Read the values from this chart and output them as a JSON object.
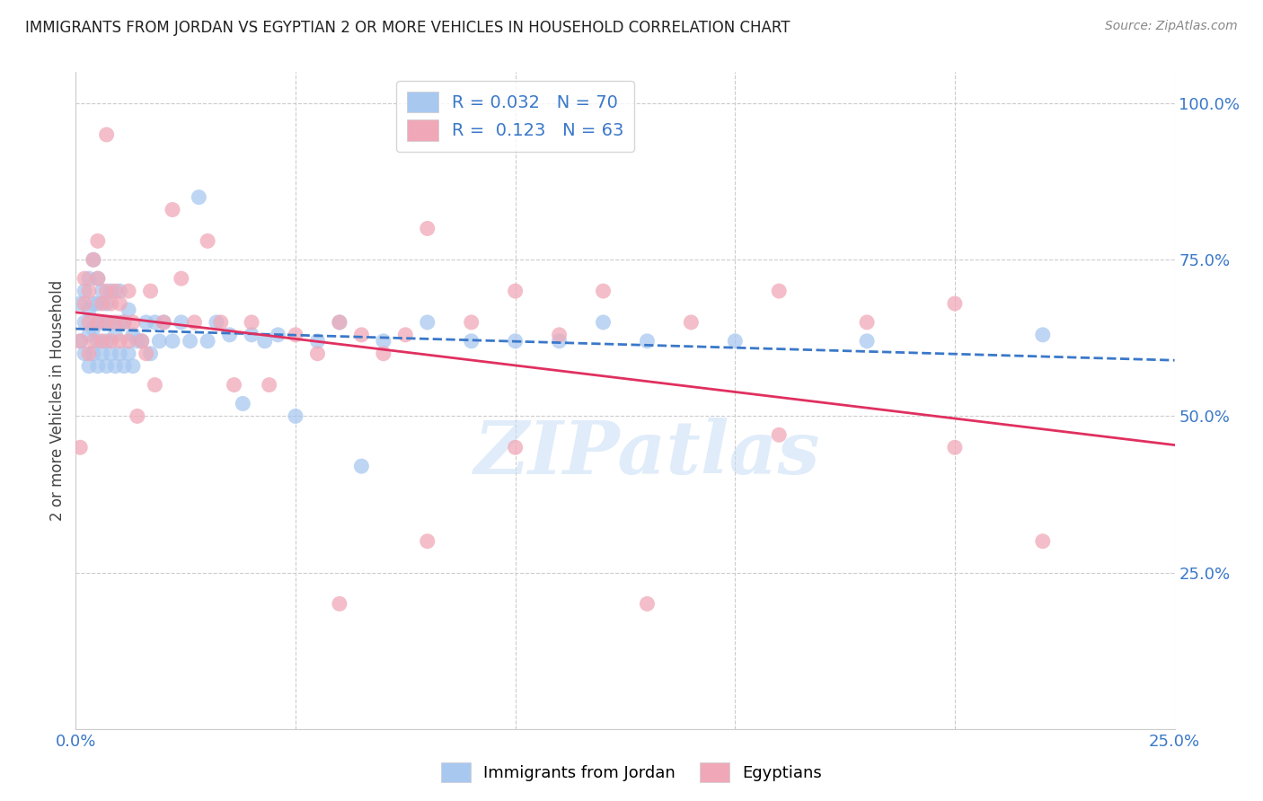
{
  "title": "IMMIGRANTS FROM JORDAN VS EGYPTIAN 2 OR MORE VEHICLES IN HOUSEHOLD CORRELATION CHART",
  "source": "Source: ZipAtlas.com",
  "ylabel": "2 or more Vehicles in Household",
  "watermark": "ZIPatlas",
  "legend_blue_R": "0.032",
  "legend_blue_N": "70",
  "legend_pink_R": "0.123",
  "legend_pink_N": "63",
  "blue_color": "#a8c8f0",
  "pink_color": "#f0a8b8",
  "trend_blue_color": "#3a78c9",
  "trend_pink_color": "#e03060",
  "blue_x": [
    0.001,
    0.001,
    0.002,
    0.002,
    0.002,
    0.003,
    0.003,
    0.003,
    0.003,
    0.004,
    0.004,
    0.004,
    0.004,
    0.005,
    0.005,
    0.005,
    0.005,
    0.005,
    0.006,
    0.006,
    0.006,
    0.007,
    0.007,
    0.007,
    0.008,
    0.008,
    0.008,
    0.009,
    0.009,
    0.01,
    0.01,
    0.01,
    0.011,
    0.011,
    0.012,
    0.012,
    0.013,
    0.013,
    0.014,
    0.015,
    0.016,
    0.017,
    0.018,
    0.019,
    0.02,
    0.022,
    0.024,
    0.026,
    0.028,
    0.03,
    0.032,
    0.035,
    0.038,
    0.04,
    0.043,
    0.046,
    0.05,
    0.055,
    0.06,
    0.065,
    0.07,
    0.08,
    0.09,
    0.1,
    0.11,
    0.12,
    0.13,
    0.15,
    0.18,
    0.22
  ],
  "blue_y": [
    0.62,
    0.68,
    0.6,
    0.65,
    0.7,
    0.58,
    0.63,
    0.67,
    0.72,
    0.6,
    0.64,
    0.68,
    0.75,
    0.58,
    0.62,
    0.65,
    0.68,
    0.72,
    0.6,
    0.65,
    0.7,
    0.58,
    0.62,
    0.68,
    0.6,
    0.65,
    0.7,
    0.58,
    0.63,
    0.6,
    0.65,
    0.7,
    0.58,
    0.65,
    0.6,
    0.67,
    0.58,
    0.63,
    0.62,
    0.62,
    0.65,
    0.6,
    0.65,
    0.62,
    0.65,
    0.62,
    0.65,
    0.62,
    0.85,
    0.62,
    0.65,
    0.63,
    0.52,
    0.63,
    0.62,
    0.63,
    0.5,
    0.62,
    0.65,
    0.42,
    0.62,
    0.65,
    0.62,
    0.62,
    0.62,
    0.65,
    0.62,
    0.62,
    0.62,
    0.63
  ],
  "pink_x": [
    0.001,
    0.001,
    0.002,
    0.002,
    0.003,
    0.003,
    0.003,
    0.004,
    0.004,
    0.005,
    0.005,
    0.005,
    0.006,
    0.006,
    0.007,
    0.007,
    0.007,
    0.008,
    0.008,
    0.009,
    0.009,
    0.01,
    0.01,
    0.011,
    0.012,
    0.012,
    0.013,
    0.014,
    0.015,
    0.016,
    0.017,
    0.018,
    0.02,
    0.022,
    0.024,
    0.027,
    0.03,
    0.033,
    0.036,
    0.04,
    0.044,
    0.05,
    0.055,
    0.06,
    0.065,
    0.07,
    0.075,
    0.08,
    0.09,
    0.1,
    0.11,
    0.12,
    0.14,
    0.16,
    0.18,
    0.2,
    0.06,
    0.08,
    0.1,
    0.13,
    0.16,
    0.2,
    0.22
  ],
  "pink_y": [
    0.62,
    0.45,
    0.68,
    0.72,
    0.6,
    0.65,
    0.7,
    0.62,
    0.75,
    0.65,
    0.72,
    0.78,
    0.62,
    0.68,
    0.65,
    0.7,
    0.95,
    0.62,
    0.68,
    0.65,
    0.7,
    0.62,
    0.68,
    0.65,
    0.62,
    0.7,
    0.65,
    0.5,
    0.62,
    0.6,
    0.7,
    0.55,
    0.65,
    0.83,
    0.72,
    0.65,
    0.78,
    0.65,
    0.55,
    0.65,
    0.55,
    0.63,
    0.6,
    0.65,
    0.63,
    0.6,
    0.63,
    0.8,
    0.65,
    0.7,
    0.63,
    0.7,
    0.65,
    0.7,
    0.65,
    0.68,
    0.2,
    0.3,
    0.45,
    0.2,
    0.47,
    0.45,
    0.3
  ],
  "xlim": [
    0.0,
    0.25
  ],
  "ylim": [
    0.0,
    1.05
  ],
  "yticks": [
    0.25,
    0.5,
    0.75,
    1.0
  ],
  "ytick_labels": [
    "25.0%",
    "50.0%",
    "75.0%",
    "100.0%"
  ],
  "xticks": [
    0.0,
    0.05,
    0.1,
    0.15,
    0.2,
    0.25
  ],
  "xtick_labels": [
    "0.0%",
    "",
    "",
    "",
    "",
    "25.0%"
  ],
  "grid_yticks": [
    0.0,
    0.25,
    0.5,
    0.75,
    1.0
  ]
}
